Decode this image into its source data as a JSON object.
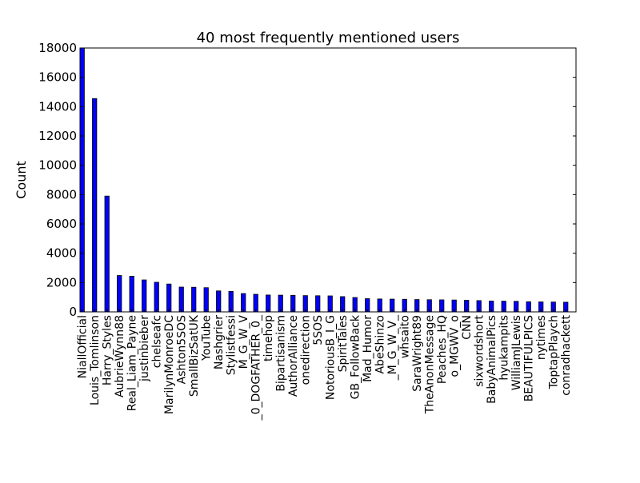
{
  "chart_data": {
    "type": "bar",
    "title": "40 most frequently mentioned users",
    "xlabel": "",
    "ylabel": "Count",
    "ylim": [
      0,
      18000
    ],
    "yticks": [
      0,
      2000,
      4000,
      6000,
      8000,
      10000,
      12000,
      14000,
      16000,
      18000
    ],
    "grid": false,
    "bar_color": "#0000ff",
    "categories": [
      "NiallOfficial",
      "Louis_Tomlinson",
      "Harry_Styles",
      "AubrieWynn88",
      "Real_Liam_Payne",
      "justinbieber",
      "chelseafc",
      "MarilynMonroeDC",
      "Ashton5SOS",
      "SmallBizSatUK",
      "YouTube",
      "Nashgrier",
      "Stylistfessi",
      "M_G_W_V",
      "_0_DOGFATHER_0_",
      "timehop",
      "Bipartisanism",
      "AuthorAlliance",
      "onedirection",
      "5SOS",
      "NotoriousB_I_G",
      "SpiritTales",
      "GB_FollowBack",
      "Mad_Humor",
      "AbeShinzo",
      "_M_G_W_V_",
      "whsaito",
      "SaraWright89",
      "TheAnonMessage",
      "Peaches_HQ",
      "o_MGWV_o",
      "CNN",
      "sixwordshort",
      "BabyAnimalPics",
      "hyukampits",
      "WilliamJLewis",
      "BEAUTIFULPICS",
      "nytimes",
      "ToptapPlaych",
      "conradhackett"
    ],
    "values": [
      18000,
      14550,
      7900,
      2480,
      2430,
      2180,
      2020,
      1900,
      1690,
      1680,
      1650,
      1430,
      1400,
      1250,
      1200,
      1150,
      1140,
      1130,
      1110,
      1100,
      1090,
      1040,
      980,
      900,
      880,
      870,
      860,
      840,
      830,
      820,
      810,
      790,
      770,
      740,
      730,
      720,
      690,
      680,
      670,
      660
    ]
  }
}
